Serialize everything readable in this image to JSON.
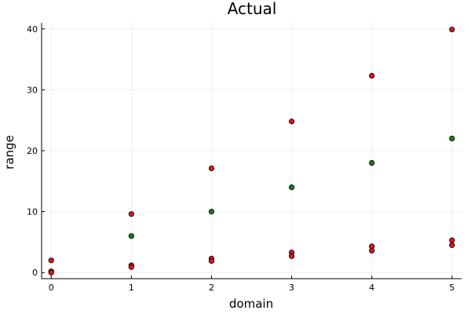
{
  "chart_data": {
    "type": "scatter",
    "title": "Actual",
    "xlabel": "domain",
    "ylabel": "range",
    "xlim": [
      -0.12,
      5.12
    ],
    "ylim": [
      -1.0,
      41.0
    ],
    "xticks": [
      0,
      1,
      2,
      3,
      4,
      5
    ],
    "yticks": [
      0,
      10,
      20,
      30,
      40
    ],
    "grid": true,
    "legend": "none",
    "series": [
      {
        "color": "#d7191c",
        "points": [
          {
            "x": 0,
            "y": 2.0
          },
          {
            "x": 0,
            "y": 0.2
          },
          {
            "x": 0,
            "y": 0.0
          },
          {
            "x": 1,
            "y": 9.6
          },
          {
            "x": 1,
            "y": 1.2
          },
          {
            "x": 1,
            "y": 0.9
          },
          {
            "x": 2,
            "y": 17.1
          },
          {
            "x": 2,
            "y": 2.3
          },
          {
            "x": 2,
            "y": 1.9
          },
          {
            "x": 3,
            "y": 24.8
          },
          {
            "x": 3,
            "y": 3.3
          },
          {
            "x": 3,
            "y": 2.7
          },
          {
            "x": 4,
            "y": 32.3
          },
          {
            "x": 4,
            "y": 4.3
          },
          {
            "x": 4,
            "y": 3.6
          },
          {
            "x": 5,
            "y": 39.9
          },
          {
            "x": 5,
            "y": 5.3
          },
          {
            "x": 5,
            "y": 4.5
          }
        ]
      },
      {
        "color": "#1a7d1a",
        "points": [
          {
            "x": 1,
            "y": 6.0
          },
          {
            "x": 2,
            "y": 10.0
          },
          {
            "x": 3,
            "y": 14.0
          },
          {
            "x": 4,
            "y": 18.0
          },
          {
            "x": 5,
            "y": 22.0
          }
        ]
      }
    ]
  }
}
